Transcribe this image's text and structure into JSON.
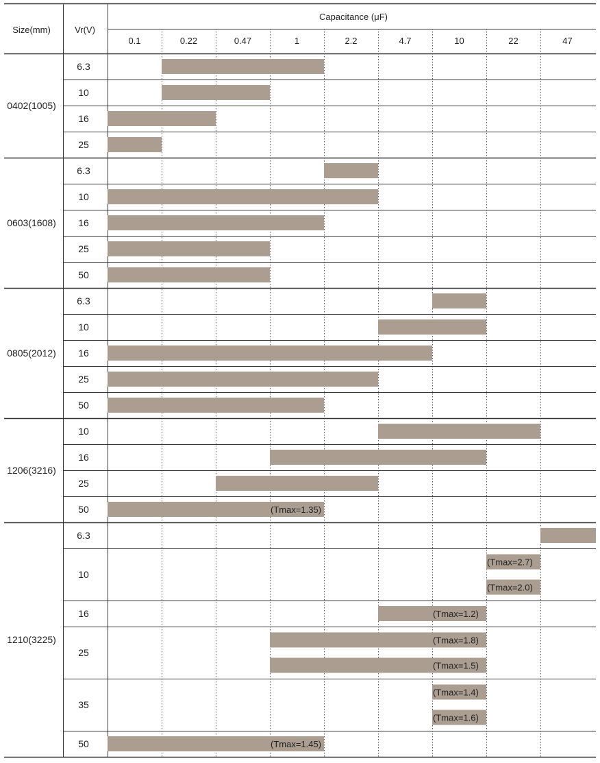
{
  "header": {
    "size_label": "Size(mm)",
    "vr_label": "Vr(V)",
    "capacitance_label": "Capacitance (μF)"
  },
  "chart_data": {
    "type": "table",
    "title": "",
    "capacitance_values": [
      "0.1",
      "0.22",
      "0.47",
      "1",
      "2.2",
      "4.7",
      "10",
      "22",
      "47"
    ],
    "bar_color": "#ab9e91",
    "groups": [
      {
        "size": "0402(1005)",
        "rows": [
          {
            "vr": "6.3",
            "bars": [
              {
                "from": "0.22",
                "to": "2.2",
                "label": ""
              }
            ]
          },
          {
            "vr": "10",
            "bars": [
              {
                "from": "0.22",
                "to": "1",
                "label": ""
              }
            ]
          },
          {
            "vr": "16",
            "bars": [
              {
                "from": "0.1",
                "to": "0.47",
                "label": ""
              }
            ]
          },
          {
            "vr": "25",
            "bars": [
              {
                "from": "0.1",
                "to": "0.22",
                "label": ""
              }
            ]
          }
        ]
      },
      {
        "size": "0603(1608)",
        "rows": [
          {
            "vr": "6.3",
            "bars": [
              {
                "from": "2.2",
                "to": "4.7",
                "label": ""
              }
            ]
          },
          {
            "vr": "10",
            "bars": [
              {
                "from": "0.1",
                "to": "4.7",
                "label": ""
              }
            ]
          },
          {
            "vr": "16",
            "bars": [
              {
                "from": "0.1",
                "to": "2.2",
                "label": ""
              }
            ]
          },
          {
            "vr": "25",
            "bars": [
              {
                "from": "0.1",
                "to": "1",
                "label": ""
              }
            ]
          },
          {
            "vr": "50",
            "bars": [
              {
                "from": "0.1",
                "to": "1",
                "label": ""
              }
            ]
          }
        ]
      },
      {
        "size": "0805(2012)",
        "rows": [
          {
            "vr": "6.3",
            "bars": [
              {
                "from": "10",
                "to": "22",
                "label": ""
              }
            ]
          },
          {
            "vr": "10",
            "bars": [
              {
                "from": "4.7",
                "to": "22",
                "label": ""
              }
            ]
          },
          {
            "vr": "16",
            "bars": [
              {
                "from": "0.1",
                "to": "10",
                "label": ""
              }
            ]
          },
          {
            "vr": "25",
            "bars": [
              {
                "from": "0.1",
                "to": "4.7",
                "label": ""
              }
            ]
          },
          {
            "vr": "50",
            "bars": [
              {
                "from": "0.1",
                "to": "2.2",
                "label": ""
              }
            ]
          }
        ]
      },
      {
        "size": "1206(3216)",
        "rows": [
          {
            "vr": "10",
            "bars": [
              {
                "from": "4.7",
                "to": "47",
                "label": ""
              }
            ]
          },
          {
            "vr": "16",
            "bars": [
              {
                "from": "1",
                "to": "22",
                "label": ""
              }
            ]
          },
          {
            "vr": "25",
            "bars": [
              {
                "from": "0.47",
                "to": "4.7",
                "label": ""
              }
            ]
          },
          {
            "vr": "50",
            "bars": [
              {
                "from": "0.1",
                "to": "2.2",
                "label": "(Tmax=1.35)"
              }
            ]
          }
        ]
      },
      {
        "size": "1210(3225)",
        "rows": [
          {
            "vr": "6.3",
            "bars": [
              {
                "from": "47",
                "to": "",
                "label": ""
              }
            ]
          },
          {
            "vr": "10",
            "bars": [
              {
                "from": "22",
                "to": "47",
                "label": "(Tmax=2.7)"
              },
              {
                "from": "22",
                "to": "47",
                "label": "(Tmax=2.0)"
              }
            ]
          },
          {
            "vr": "16",
            "bars": [
              {
                "from": "4.7",
                "to": "22",
                "label": "(Tmax=1.2)"
              }
            ]
          },
          {
            "vr": "25",
            "bars": [
              {
                "from": "1",
                "to": "22",
                "label": "(Tmax=1.8)"
              },
              {
                "from": "1",
                "to": "22",
                "label": "(Tmax=1.5)"
              }
            ]
          },
          {
            "vr": "35",
            "bars": [
              {
                "from": "10",
                "to": "22",
                "label": "(Tmax=1.4)"
              },
              {
                "from": "10",
                "to": "22",
                "label": "(Tmax=1.6)"
              }
            ]
          },
          {
            "vr": "50",
            "bars": [
              {
                "from": "0.1",
                "to": "2.2",
                "label": "(Tmax=1.45)"
              }
            ]
          }
        ]
      }
    ]
  }
}
